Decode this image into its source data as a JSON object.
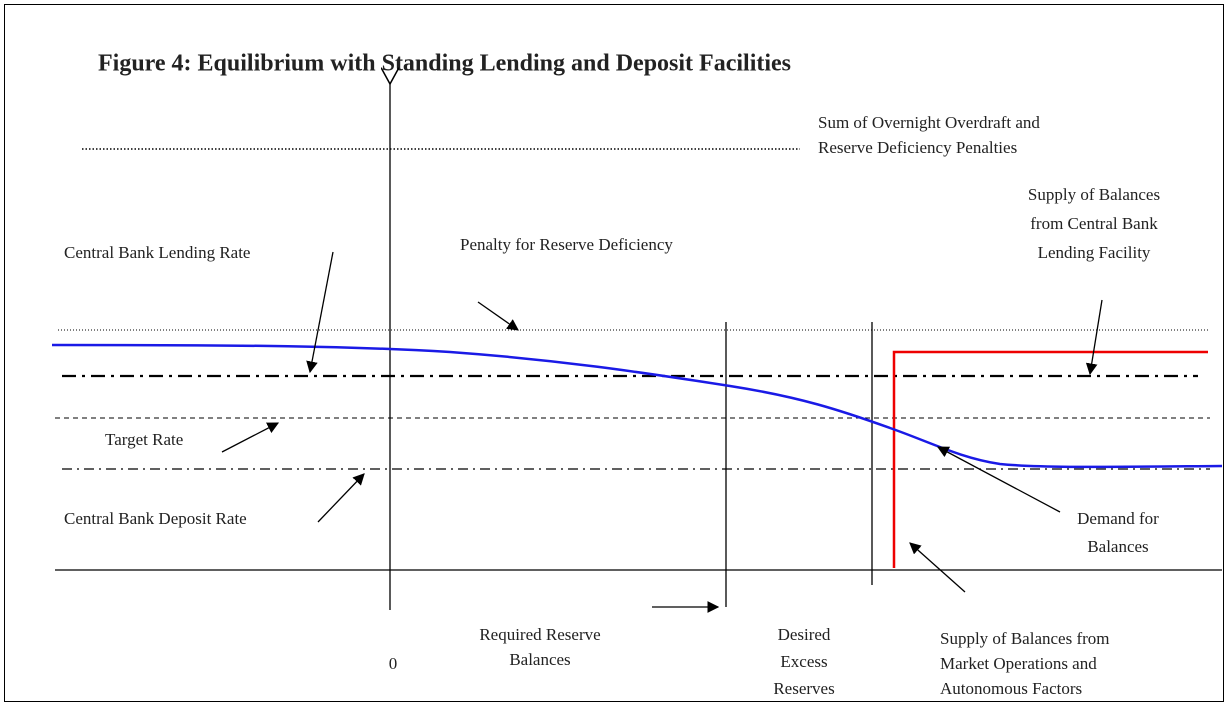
{
  "title": "Figure 4:  Equilibrium with Standing Lending and Deposit Facilities",
  "labels": [
    {
      "lines": [
        "Sum of Overnight Overdraft and",
        "Reserve Deficiency Penalties"
      ]
    },
    {
      "lines": [
        "Central Bank Lending Rate"
      ]
    },
    {
      "lines": [
        "Penalty for Reserve Deficiency"
      ]
    },
    {
      "lines": [
        "Supply of Balances",
        "from Central Bank",
        "Lending Facility"
      ]
    },
    {
      "lines": [
        "Target Rate"
      ]
    },
    {
      "lines": [
        "Central Bank Deposit Rate"
      ]
    },
    {
      "lines": [
        "Demand for",
        "Balances"
      ]
    },
    {
      "lines": [
        "0"
      ]
    },
    {
      "lines": [
        "Required Reserve",
        "Balances"
      ]
    },
    {
      "lines": [
        "Desired",
        "Excess",
        "Reserves"
      ]
    },
    {
      "lines": [
        "Supply of Balances from",
        "Market Operations and",
        "Autonomous Factors"
      ]
    }
  ]
}
